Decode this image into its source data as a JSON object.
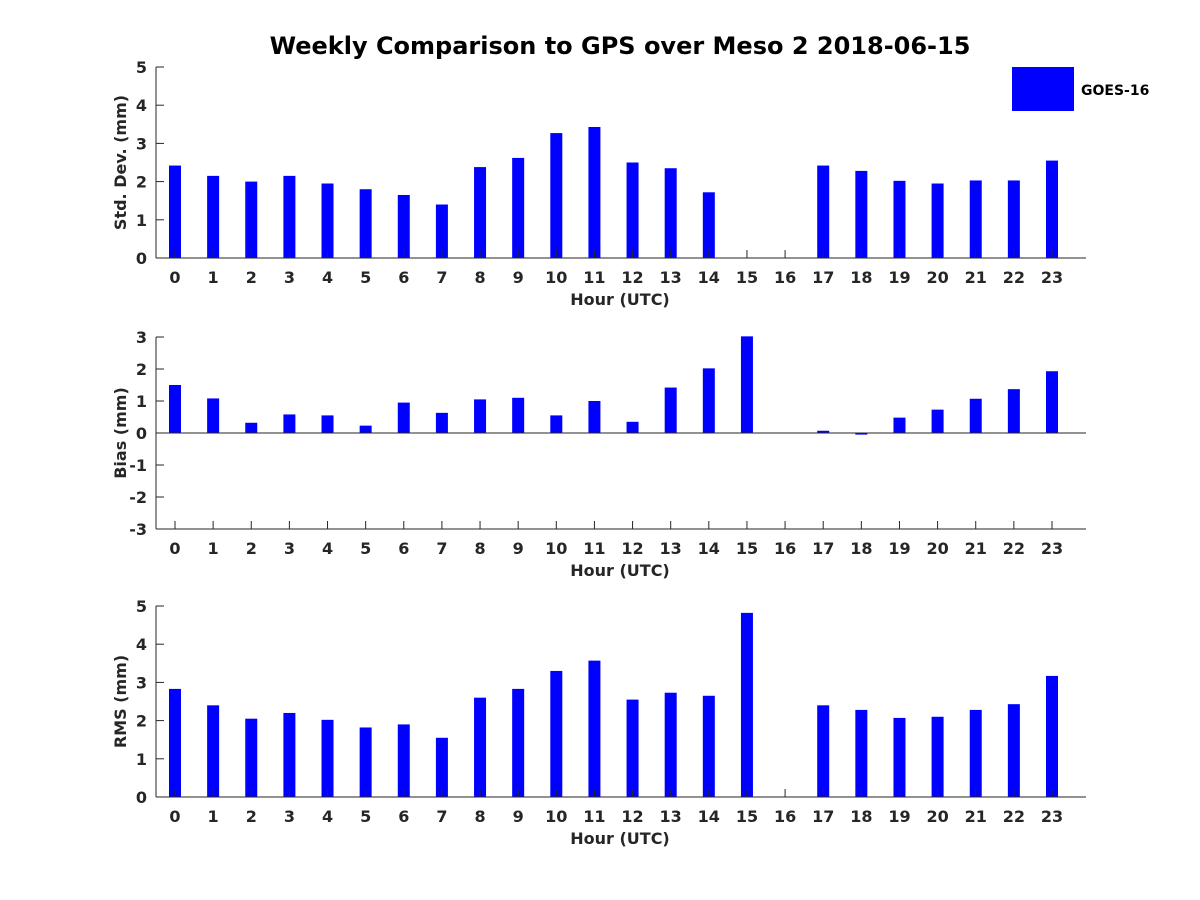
{
  "figure": {
    "title": "Weekly Comparison to GPS over Meso 2 2018-06-15",
    "legend": {
      "label": "GOES-16",
      "color": "#0000ff"
    }
  },
  "chart_data": [
    {
      "type": "bar",
      "name": "std-dev",
      "categories": [
        "0",
        "1",
        "2",
        "3",
        "4",
        "5",
        "6",
        "7",
        "8",
        "9",
        "10",
        "11",
        "12",
        "13",
        "14",
        "15",
        "16",
        "17",
        "18",
        "19",
        "20",
        "21",
        "22",
        "23"
      ],
      "values": [
        2.42,
        2.15,
        2.0,
        2.15,
        1.95,
        1.8,
        1.65,
        1.4,
        2.38,
        2.62,
        3.27,
        3.43,
        2.5,
        2.35,
        1.72,
        null,
        null,
        2.42,
        2.28,
        2.02,
        1.95,
        2.03,
        2.03,
        2.55
      ],
      "title": "",
      "xlabel": "Hour (UTC)",
      "ylabel": "Std. Dev. (mm)",
      "ylim": [
        0,
        5
      ],
      "yticks": [
        "0",
        "1",
        "2",
        "3",
        "4",
        "5"
      ],
      "color": "#0000ff"
    },
    {
      "type": "bar",
      "name": "bias",
      "categories": [
        "0",
        "1",
        "2",
        "3",
        "4",
        "5",
        "6",
        "7",
        "8",
        "9",
        "10",
        "11",
        "12",
        "13",
        "14",
        "15",
        "16",
        "17",
        "18",
        "19",
        "20",
        "21",
        "22",
        "23"
      ],
      "values": [
        1.5,
        1.08,
        0.32,
        0.58,
        0.55,
        0.23,
        0.95,
        0.63,
        1.05,
        1.1,
        0.55,
        1.0,
        0.35,
        1.42,
        2.02,
        3.02,
        null,
        0.07,
        -0.05,
        0.48,
        0.73,
        1.07,
        1.37,
        1.93
      ],
      "title": "",
      "xlabel": "Hour (UTC)",
      "ylabel": "Bias (mm)",
      "ylim": [
        -3,
        3
      ],
      "yticks": [
        "-3",
        "-2",
        "-1",
        "0",
        "1",
        "2",
        "3"
      ],
      "color": "#0000ff"
    },
    {
      "type": "bar",
      "name": "rms",
      "categories": [
        "0",
        "1",
        "2",
        "3",
        "4",
        "5",
        "6",
        "7",
        "8",
        "9",
        "10",
        "11",
        "12",
        "13",
        "14",
        "15",
        "16",
        "17",
        "18",
        "19",
        "20",
        "21",
        "22",
        "23"
      ],
      "values": [
        2.83,
        2.4,
        2.05,
        2.2,
        2.02,
        1.82,
        1.9,
        1.55,
        2.6,
        2.83,
        3.3,
        3.57,
        2.55,
        2.73,
        2.65,
        4.82,
        null,
        2.4,
        2.28,
        2.07,
        2.1,
        2.28,
        2.43,
        3.17
      ],
      "title": "",
      "xlabel": "Hour (UTC)",
      "ylabel": "RMS (mm)",
      "ylim": [
        0,
        5
      ],
      "yticks": [
        "0",
        "1",
        "2",
        "3",
        "4",
        "5"
      ],
      "color": "#0000ff"
    }
  ]
}
